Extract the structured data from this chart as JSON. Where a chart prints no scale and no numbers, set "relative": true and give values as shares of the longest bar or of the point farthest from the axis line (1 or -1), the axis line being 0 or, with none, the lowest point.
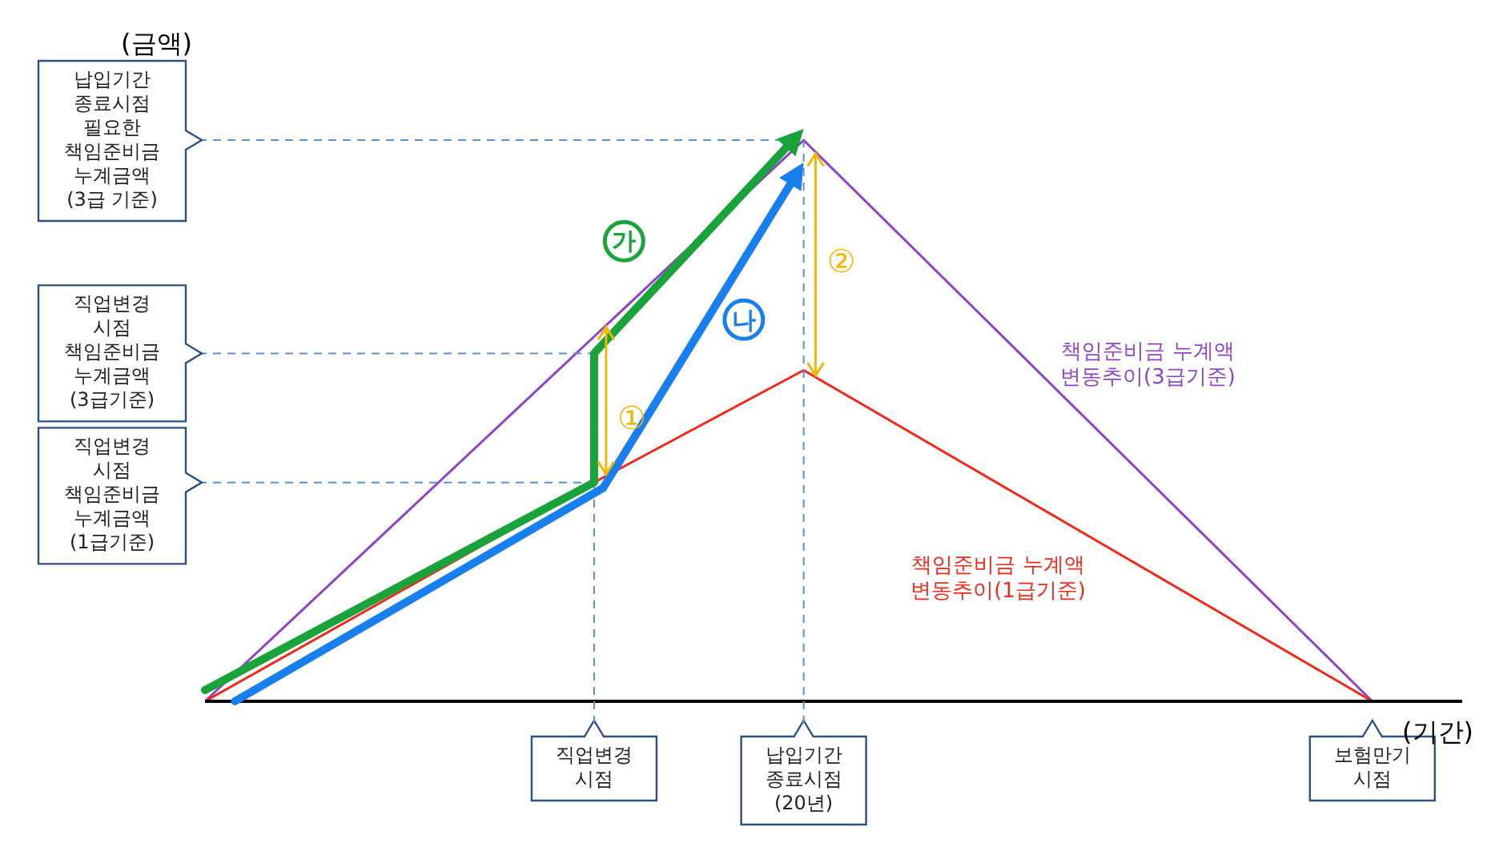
{
  "chart_data": {
    "type": "line",
    "relative": true,
    "ylabel": "(금액)",
    "xlabel": "(기간)",
    "categories": [
      null,
      null,
      null,
      null,
      null,
      null,
      null,
      null,
      null,
      null,
      null,
      null,
      null,
      "직업변경\n시점",
      null,
      null,
      null,
      null,
      null,
      null,
      "납입기간\n종료시점\n(20년)",
      null,
      null,
      null,
      null,
      null,
      null,
      null,
      null,
      null,
      null,
      null,
      null,
      null,
      null,
      null,
      null,
      null,
      null,
      "보험만기\n시점",
      null,
      null,
      null
    ],
    "series": [
      {
        "name": "책임준비금 누계액\n변동추이(3급기준)",
        "color": "#8e44c8",
        "values": [
          0,
          null,
          null,
          null,
          null,
          null,
          null,
          null,
          null,
          null,
          null,
          null,
          null,
          null,
          null,
          null,
          null,
          null,
          null,
          null,
          1,
          null,
          null,
          null,
          null,
          null,
          null,
          null,
          null,
          null,
          null,
          null,
          null,
          null,
          null,
          null,
          null,
          null,
          null,
          0,
          null,
          null,
          null
        ]
      },
      {
        "name": "책임준비금 누계액\n변동추이(1급기준)",
        "color": "#ee2a1c",
        "values": [
          0,
          null,
          null,
          null,
          null,
          null,
          null,
          null,
          null,
          null,
          null,
          null,
          null,
          0.39,
          null,
          null,
          null,
          null,
          null,
          null,
          0.59,
          null,
          null,
          null,
          null,
          null,
          null,
          null,
          null,
          null,
          null,
          null,
          null,
          null,
          null,
          null,
          null,
          null,
          null,
          0,
          null,
          null,
          null
        ]
      }
    ],
    "ref_lines": [
      {
        "axis": "y",
        "value": 1,
        "color": "#5b8fd6",
        "line_style": "dashed"
      },
      {
        "axis": "y",
        "value": 0.62,
        "color": "#5b8fd6",
        "line_style": "dashed"
      },
      {
        "axis": "y",
        "value": 0.39,
        "color": "#5b8fd6",
        "line_style": "dashed"
      },
      {
        "axis": "x",
        "value": "직업변경\n시점",
        "color": "#5b8fd6",
        "line_style": "dashed"
      },
      {
        "axis": "x",
        "value": "납입기간\n종료시점\n(20년)",
        "color": "#5b8fd6",
        "line_style": "dashed"
      }
    ],
    "annotations": [
      "납입기간\n종료시점\n필요한\n책임준비금\n누계금액\n(3급 기준)",
      "직업변경\n시점\n책임준비금\n누계금액\n(3급기준)",
      "직업변경\n시점\n책임준비금\n누계금액\n(1급기준)",
      "가",
      "나",
      "①",
      "②"
    ]
  }
}
